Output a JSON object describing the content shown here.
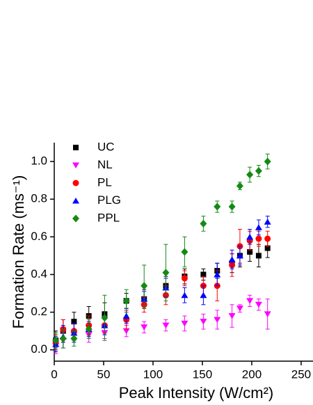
{
  "chart_data": {
    "type": "scatter",
    "xlabel": "Peak Intensity (W/cm²)",
    "ylabel": "Formation Rate (ms⁻¹)",
    "xlim": [
      0,
      262
    ],
    "ylim": [
      -0.06,
      1.1
    ],
    "xticks": [
      0,
      50,
      100,
      150,
      200,
      250
    ],
    "yticks": [
      {
        "value": 0,
        "label": "0.0"
      },
      {
        "value": 0.2,
        "label": "0.2"
      },
      {
        "value": 0.4,
        "label": "0.4"
      },
      {
        "value": 0.6,
        "label": "0.6"
      },
      {
        "value": 0.8,
        "label": "0.8"
      },
      {
        "value": 1.0,
        "label": "1.0"
      }
    ],
    "legend": "upper left",
    "series": [
      {
        "name": "UC",
        "color": "#000000",
        "marker": "square",
        "x": [
          1.5,
          9,
          20,
          35,
          51,
          73,
          91,
          113,
          132,
          151,
          165,
          180,
          188,
          198,
          207,
          216
        ],
        "values": [
          0.05,
          0.1,
          0.15,
          0.18,
          0.19,
          0.26,
          0.27,
          0.34,
          0.39,
          0.4,
          0.42,
          0.46,
          0.5,
          0.52,
          0.5,
          0.54
        ],
        "errors": [
          0.05,
          0.06,
          0.05,
          0.05,
          0.06,
          0.04,
          0.05,
          0.05,
          0.04,
          0.03,
          0.04,
          0.05,
          0.06,
          0.05,
          0.06,
          0.05
        ]
      },
      {
        "name": "NL",
        "color": "#ff00ff",
        "marker": "triangle-down",
        "x": [
          1.5,
          9,
          20,
          35,
          51,
          73,
          91,
          113,
          132,
          151,
          165,
          180,
          188,
          198,
          207,
          216
        ],
        "values": [
          0.02,
          0.05,
          0.08,
          0.08,
          0.09,
          0.1,
          0.12,
          0.13,
          0.14,
          0.15,
          0.16,
          0.18,
          0.22,
          0.26,
          0.24,
          0.19
        ],
        "errors": [
          0.04,
          0.04,
          0.03,
          0.04,
          0.03,
          0.03,
          0.03,
          0.03,
          0.04,
          0.04,
          0.05,
          0.06,
          0.02,
          0.03,
          0.03,
          0.08
        ]
      },
      {
        "name": "PL",
        "color": "#ff0000",
        "marker": "circle",
        "x": [
          1.5,
          9,
          20,
          35,
          51,
          73,
          91,
          113,
          132,
          151,
          165,
          180,
          188,
          198,
          207,
          216
        ],
        "values": [
          0.04,
          0.11,
          0.1,
          0.13,
          0.13,
          0.16,
          0.24,
          0.29,
          0.38,
          0.34,
          0.34,
          0.45,
          0.55,
          0.58,
          0.59,
          0.59
        ],
        "errors": [
          0.04,
          0.05,
          0.04,
          0.05,
          0.04,
          0.05,
          0.04,
          0.05,
          0.04,
          0.05,
          0.08,
          0.06,
          0.09,
          0.05,
          0.04,
          0.04
        ]
      },
      {
        "name": "PLG",
        "color": "#0000ff",
        "marker": "triangle-up",
        "x": [
          1.5,
          9,
          20,
          35,
          51,
          73,
          91,
          113,
          132,
          151,
          165,
          180,
          188,
          198,
          207,
          216
        ],
        "values": [
          0.03,
          0.07,
          0.09,
          0.11,
          0.13,
          0.18,
          0.27,
          0.33,
          0.29,
          0.29,
          0.4,
          0.48,
          0.5,
          0.6,
          0.65,
          0.68
        ],
        "errors": [
          0.04,
          0.06,
          0.05,
          0.04,
          0.05,
          0.04,
          0.04,
          0.05,
          0.04,
          0.05,
          0.06,
          0.05,
          0.05,
          0.04,
          0.04,
          0.03
        ]
      },
      {
        "name": "PPL",
        "color": "#138a13",
        "marker": "diamond",
        "x": [
          1.5,
          9,
          20,
          35,
          51,
          73,
          91,
          113,
          132,
          151,
          165,
          180,
          188,
          198,
          207,
          216
        ],
        "values": [
          0.05,
          0.06,
          0.06,
          0.11,
          0.17,
          0.26,
          0.34,
          0.41,
          0.52,
          0.67,
          0.76,
          0.76,
          0.87,
          0.93,
          0.95,
          1.0
        ],
        "errors": [
          0.04,
          0.05,
          0.04,
          0.05,
          0.12,
          0.06,
          0.11,
          0.15,
          0.08,
          0.04,
          0.03,
          0.03,
          0.02,
          0.04,
          0.03,
          0.04
        ]
      }
    ]
  }
}
